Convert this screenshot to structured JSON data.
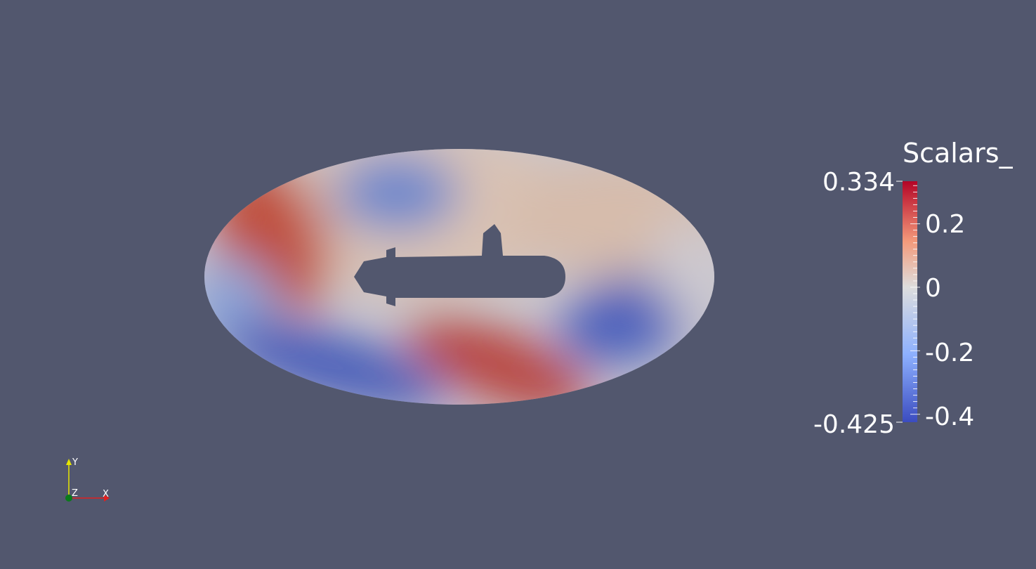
{
  "scalar_bar": {
    "title": "Scalars_",
    "max_label": "0.334",
    "min_label": "-0.425",
    "range": [
      -0.425,
      0.334
    ],
    "ticks": [
      "0.2",
      "0",
      "-0.2",
      "-0.4"
    ],
    "tick_values": [
      0.2,
      0,
      -0.2,
      -0.4
    ],
    "colormap": [
      "#3b4cc0",
      "#8db0fe",
      "#dddddd",
      "#f49a7b",
      "#b40426"
    ]
  },
  "orientation_axes": {
    "x_label": "X",
    "y_label": "Y",
    "z_label": "Z",
    "x_color": "#e02020",
    "y_color": "#e6e600",
    "z_color": "#0a7a1a"
  },
  "background_color": "#52576e"
}
